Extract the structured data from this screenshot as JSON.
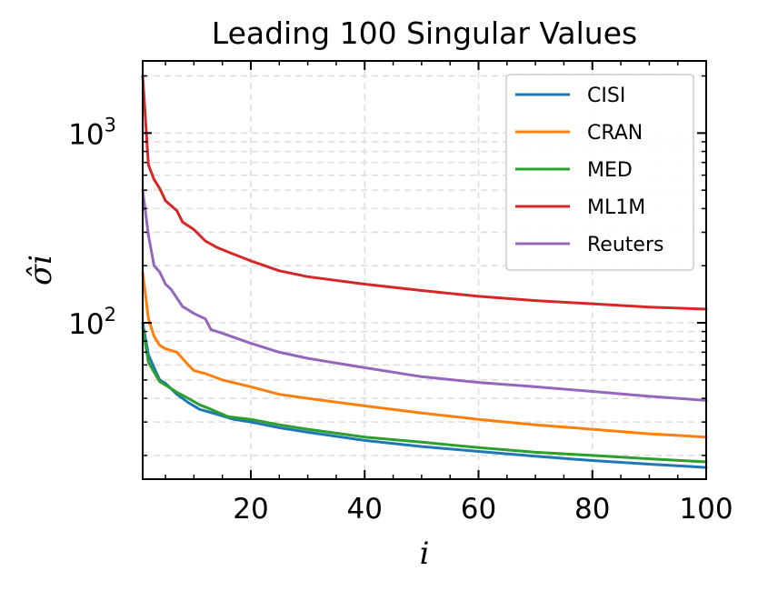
{
  "chart_data": {
    "type": "line",
    "title": "Leading 100 Singular Values",
    "xlabel": "i",
    "ylabel": "σ̂i",
    "y_scale": "log",
    "xlim": [
      1,
      100
    ],
    "ylim": [
      15,
      2400
    ],
    "x_ticks": [
      20,
      40,
      60,
      80,
      100
    ],
    "y_ticks": [
      {
        "value": 100,
        "base": "10",
        "exp": "2"
      },
      {
        "value": 1000,
        "base": "10",
        "exp": "3"
      }
    ],
    "grid": true,
    "legend_position": "top-right",
    "series": [
      {
        "name": "CISI",
        "color": "#1f77b4",
        "points": [
          [
            1,
            100
          ],
          [
            2,
            68
          ],
          [
            3,
            58
          ],
          [
            4,
            50
          ],
          [
            5,
            48
          ],
          [
            7,
            42
          ],
          [
            9,
            38
          ],
          [
            11,
            35
          ],
          [
            14,
            33
          ],
          [
            17,
            31
          ],
          [
            20,
            30
          ],
          [
            25,
            28
          ],
          [
            30,
            26.5
          ],
          [
            40,
            24
          ],
          [
            50,
            22.3
          ],
          [
            60,
            21
          ],
          [
            70,
            19.8
          ],
          [
            80,
            18.8
          ],
          [
            90,
            18
          ],
          [
            100,
            17.3
          ]
        ]
      },
      {
        "name": "CRAN",
        "color": "#ff7f0e",
        "points": [
          [
            1,
            185
          ],
          [
            2,
            105
          ],
          [
            3,
            85
          ],
          [
            4,
            76
          ],
          [
            5,
            73
          ],
          [
            7,
            70
          ],
          [
            9,
            60
          ],
          [
            10,
            56
          ],
          [
            12,
            54
          ],
          [
            15,
            50
          ],
          [
            20,
            46
          ],
          [
            25,
            42
          ],
          [
            30,
            40
          ],
          [
            40,
            36.5
          ],
          [
            50,
            33.5
          ],
          [
            60,
            31
          ],
          [
            70,
            29
          ],
          [
            80,
            27.5
          ],
          [
            90,
            26
          ],
          [
            100,
            25
          ]
        ]
      },
      {
        "name": "MED",
        "color": "#2ca02c",
        "points": [
          [
            1,
            95
          ],
          [
            2,
            62
          ],
          [
            3,
            55
          ],
          [
            4,
            49
          ],
          [
            5,
            47
          ],
          [
            7,
            43
          ],
          [
            9,
            40
          ],
          [
            11,
            37
          ],
          [
            13,
            35
          ],
          [
            16,
            32
          ],
          [
            20,
            31
          ],
          [
            25,
            29
          ],
          [
            30,
            27.5
          ],
          [
            40,
            25
          ],
          [
            50,
            23.5
          ],
          [
            60,
            22
          ],
          [
            70,
            20.8
          ],
          [
            80,
            20
          ],
          [
            90,
            19.2
          ],
          [
            100,
            18.5
          ]
        ]
      },
      {
        "name": "ML1M",
        "color": "#d62728",
        "points": [
          [
            1,
            2000
          ],
          [
            2,
            680
          ],
          [
            3,
            570
          ],
          [
            4,
            510
          ],
          [
            5,
            440
          ],
          [
            7,
            390
          ],
          [
            8,
            340
          ],
          [
            10,
            310
          ],
          [
            12,
            270
          ],
          [
            14,
            250
          ],
          [
            17,
            230
          ],
          [
            20,
            212
          ],
          [
            25,
            188
          ],
          [
            30,
            175
          ],
          [
            40,
            160
          ],
          [
            50,
            148
          ],
          [
            60,
            138
          ],
          [
            70,
            131
          ],
          [
            80,
            126
          ],
          [
            90,
            121
          ],
          [
            100,
            118
          ]
        ]
      },
      {
        "name": "Reuters",
        "color": "#9467bd",
        "points": [
          [
            1,
            500
          ],
          [
            2,
            290
          ],
          [
            3,
            200
          ],
          [
            4,
            185
          ],
          [
            5,
            160
          ],
          [
            6,
            150
          ],
          [
            7,
            135
          ],
          [
            8,
            122
          ],
          [
            10,
            112
          ],
          [
            12,
            105
          ],
          [
            13,
            92
          ],
          [
            15,
            88
          ],
          [
            20,
            78
          ],
          [
            25,
            70
          ],
          [
            30,
            65
          ],
          [
            40,
            58
          ],
          [
            50,
            52
          ],
          [
            60,
            48.5
          ],
          [
            70,
            46
          ],
          [
            80,
            43.5
          ],
          [
            90,
            41
          ],
          [
            100,
            39
          ]
        ]
      }
    ]
  }
}
